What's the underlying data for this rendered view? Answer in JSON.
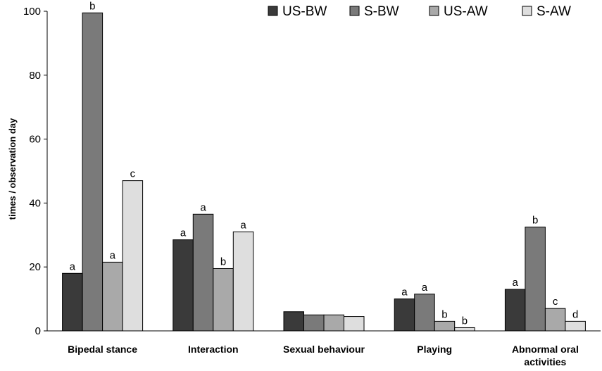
{
  "chart_data": {
    "type": "bar",
    "title": "",
    "xlabel": "",
    "ylabel": "times / observation day",
    "ylim": [
      0,
      100
    ],
    "yticks": [
      "0",
      "20",
      "40",
      "60",
      "80",
      "100"
    ],
    "categories": [
      "Bipedal stance",
      "Interaction",
      "Sexual behaviour",
      "Playing",
      "Abnormal oral\nactivities"
    ],
    "legend_position": "top-right",
    "grid": false,
    "series": [
      {
        "name": "US-BW",
        "color": "#3a3a3a",
        "values": [
          18,
          28.5,
          6,
          10,
          13
        ],
        "labels": [
          "a",
          "a",
          "",
          "a",
          "a"
        ]
      },
      {
        "name": "S-BW",
        "color": "#7a7a7a",
        "values": [
          99.5,
          36.5,
          5,
          11.5,
          32.5
        ],
        "labels": [
          "b",
          "a",
          "",
          "a",
          "b"
        ]
      },
      {
        "name": "US-AW",
        "color": "#a9a9a9",
        "values": [
          21.5,
          19.5,
          5,
          3,
          7
        ],
        "labels": [
          "a",
          "b",
          "",
          "b",
          "c"
        ]
      },
      {
        "name": "S-AW",
        "color": "#dedede",
        "values": [
          47,
          31,
          4.5,
          1,
          3
        ],
        "labels": [
          "c",
          "a",
          "",
          "b",
          "d"
        ]
      }
    ]
  }
}
